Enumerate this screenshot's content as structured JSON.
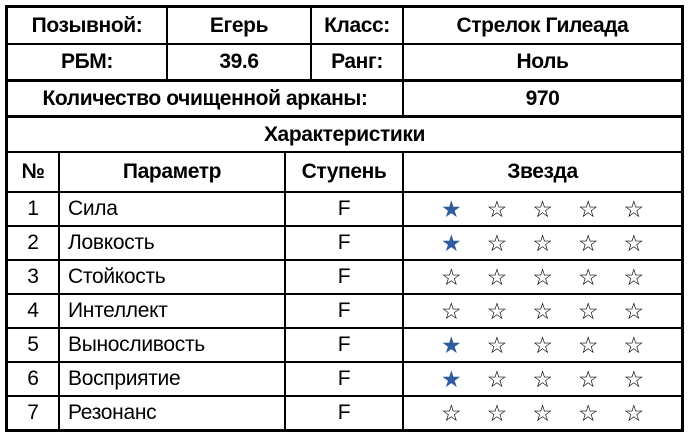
{
  "info": {
    "rows": [
      {
        "label1": "Позывной:",
        "value1": "Егерь",
        "label2": "Класс:",
        "value2": "Стрелок Гилеада"
      },
      {
        "label1": "РБМ:",
        "value1": "39.6",
        "label2": "Ранг:",
        "value2": "Ноль"
      }
    ],
    "arcana_label": "Количество очищенной арканы:",
    "arcana_value": "970"
  },
  "stats": {
    "section_title": "Характеристики",
    "headers": {
      "num": "№",
      "param": "Параметр",
      "grade": "Ступень",
      "stars": "Звезда"
    },
    "max_stars": 5,
    "rows": [
      {
        "num": "1",
        "param": "Сила",
        "grade": "F",
        "stars": 1
      },
      {
        "num": "2",
        "param": "Ловкость",
        "grade": "F",
        "stars": 1
      },
      {
        "num": "3",
        "param": "Стойкость",
        "grade": "F",
        "stars": 0
      },
      {
        "num": "4",
        "param": "Интеллект",
        "grade": "F",
        "stars": 0
      },
      {
        "num": "5",
        "param": "Выносливость",
        "grade": "F",
        "stars": 1
      },
      {
        "num": "6",
        "param": "Восприятие",
        "grade": "F",
        "stars": 1
      },
      {
        "num": "7",
        "param": "Резонанс",
        "grade": "F",
        "stars": 0
      }
    ]
  },
  "icons": {
    "star_filled": "★",
    "star_empty": "☆"
  },
  "colors": {
    "star_filled": "#2E5C9E",
    "star_empty_stroke": "#000000",
    "border": "#000000",
    "background": "#FFFFFF"
  }
}
